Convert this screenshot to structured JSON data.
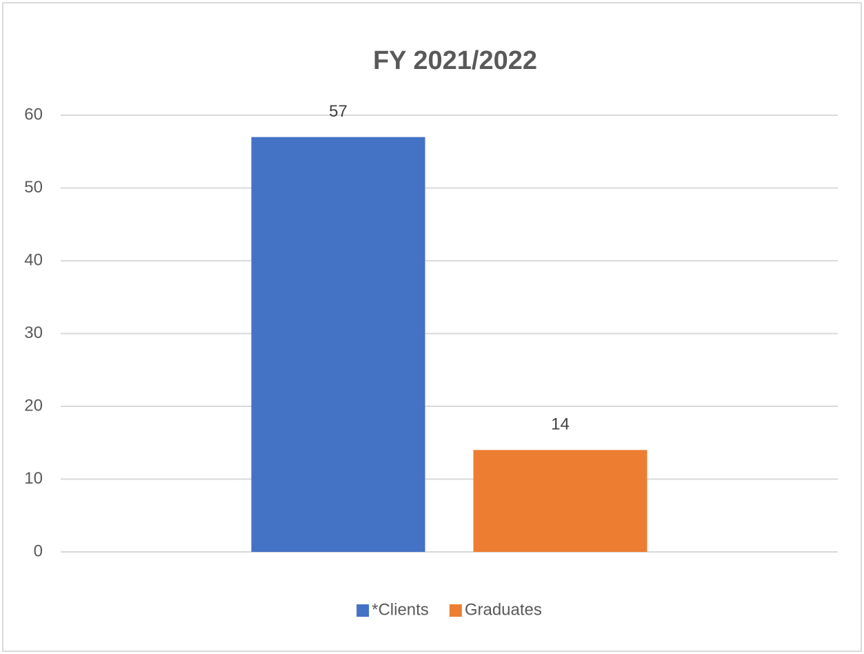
{
  "chart_data": {
    "type": "bar",
    "title": "FY 2021/2022",
    "categories": [
      null
    ],
    "series": [
      {
        "name": "*Clients",
        "color": "#4472c4",
        "values": [
          57
        ]
      },
      {
        "name": "Graduates",
        "color": "#ed7d31",
        "values": [
          14
        ]
      }
    ],
    "ylim": [
      0,
      60
    ],
    "yticks": [
      0,
      10,
      20,
      30,
      40,
      50,
      60
    ],
    "grid": true,
    "legend": "bottom"
  }
}
